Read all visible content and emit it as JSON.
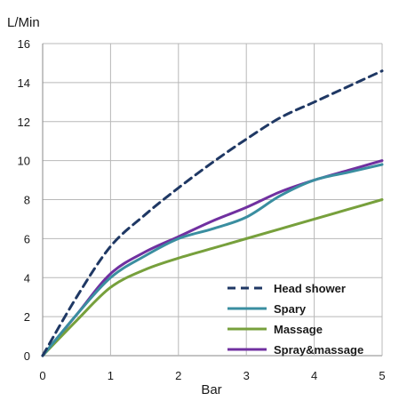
{
  "chart_data": {
    "type": "line",
    "title": "",
    "xlabel": "Bar",
    "ylabel": "L/Min",
    "xlim": [
      0,
      5
    ],
    "ylim": [
      0,
      16
    ],
    "x_ticks": [
      "0",
      "1",
      "2",
      "3",
      "4",
      "5"
    ],
    "y_ticks": [
      "0",
      "2",
      "4",
      "6",
      "8",
      "10",
      "12",
      "14",
      "16"
    ],
    "grid": true,
    "legend_position": "bottom-right",
    "x": [
      0,
      0.5,
      1,
      1.5,
      2,
      2.5,
      3,
      3.5,
      4,
      4.5,
      5
    ],
    "series": [
      {
        "name": "Head shower",
        "color": "#1f3864",
        "dash": "dashed",
        "values": [
          0,
          3.0,
          5.6,
          7.2,
          8.6,
          9.9,
          11.1,
          12.2,
          13.0,
          13.8,
          14.6
        ]
      },
      {
        "name": "Spary",
        "color": "#3a8ea0",
        "dash": "solid",
        "values": [
          0,
          2.1,
          4.0,
          5.1,
          6.0,
          6.5,
          7.1,
          8.2,
          9.0,
          9.4,
          9.8
        ]
      },
      {
        "name": "Massage",
        "color": "#77a03c",
        "dash": "solid",
        "values": [
          0,
          1.8,
          3.5,
          4.4,
          5.0,
          5.5,
          6.0,
          6.5,
          7.0,
          7.5,
          8.0
        ]
      },
      {
        "name": "Spray&massage",
        "color": "#7030a0",
        "dash": "solid",
        "values": [
          0,
          2.1,
          4.2,
          5.3,
          6.1,
          6.9,
          7.6,
          8.4,
          9.0,
          9.5,
          10.0
        ]
      }
    ]
  }
}
